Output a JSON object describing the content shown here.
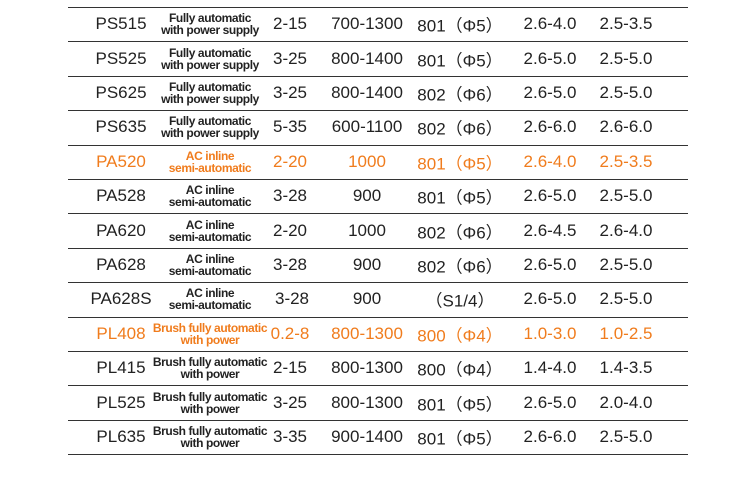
{
  "table": {
    "rows": [
      {
        "model": "PS515",
        "desc": [
          "Fully automatic",
          "with power supply"
        ],
        "range": "2-15",
        "speed": "700-1300",
        "spec": "801（Φ5）",
        "a": "2.6-4.0",
        "b": "2.5-3.5",
        "highlight": false
      },
      {
        "model": "PS525",
        "desc": [
          "Fully automatic",
          "with power supply"
        ],
        "range": "3-25",
        "speed": "800-1400",
        "spec": "801（Φ5）",
        "a": "2.6-5.0",
        "b": "2.5-5.0",
        "highlight": false
      },
      {
        "model": "PS625",
        "desc": [
          "Fully automatic",
          "with power supply"
        ],
        "range": "3-25",
        "speed": "800-1400",
        "spec": "802（Φ6）",
        "a": "2.6-5.0",
        "b": "2.5-5.0",
        "highlight": false
      },
      {
        "model": "PS635",
        "desc": [
          "Fully automatic",
          "with power supply"
        ],
        "range": "5-35",
        "speed": "600-1100",
        "spec": "802（Φ6）",
        "a": "2.6-6.0",
        "b": "2.6-6.0",
        "highlight": false
      },
      {
        "model": "PA520",
        "desc": [
          "AC inline",
          "semi-automatic"
        ],
        "range": "2-20",
        "speed": "1000",
        "spec": "801（Φ5）",
        "a": "2.6-4.0",
        "b": "2.5-3.5",
        "highlight": true
      },
      {
        "model": "PA528",
        "desc": [
          "AC inline",
          "semi-automatic"
        ],
        "range": "3-28",
        "speed": "900",
        "spec": "801（Φ5）",
        "a": "2.6-5.0",
        "b": "2.5-5.0",
        "highlight": false
      },
      {
        "model": "PA620",
        "desc": [
          "AC inline",
          "semi-automatic"
        ],
        "range": "2-20",
        "speed": "1000",
        "spec": "802（Φ6）",
        "a": "2.6-4.5",
        "b": "2.6-4.0",
        "highlight": false
      },
      {
        "model": "PA628",
        "desc": [
          "AC inline",
          "semi-automatic"
        ],
        "range": "3-28",
        "speed": "900",
        "spec": "802（Φ6）",
        "a": "2.6-5.0",
        "b": "2.5-5.0",
        "highlight": false
      },
      {
        "model": "PA628S",
        "desc": [
          "AC inline",
          "semi-automatic"
        ],
        "range": "3-28",
        "speed": "900",
        "spec": "（S1/4）",
        "a": "2.6-5.0",
        "b": "2.5-5.0",
        "highlight": false
      },
      {
        "model": "PL408",
        "desc": [
          "Brush fully automatic",
          "with power"
        ],
        "range": "0.2-8",
        "speed": "800-1300",
        "spec": "800（Φ4）",
        "a": "1.0-3.0",
        "b": "1.0-2.5",
        "highlight": true
      },
      {
        "model": "PL415",
        "desc": [
          "Brush fully automatic",
          "with power"
        ],
        "range": "2-15",
        "speed": "800-1300",
        "spec": "800（Φ4）",
        "a": "1.4-4.0",
        "b": "1.4-3.5",
        "highlight": false
      },
      {
        "model": "PL525",
        "desc": [
          "Brush fully automatic",
          "with power"
        ],
        "range": "3-25",
        "speed": "800-1300",
        "spec": "801（Φ5）",
        "a": "2.6-5.0",
        "b": "2.0-4.0",
        "highlight": false
      },
      {
        "model": "PL635",
        "desc": [
          "Brush fully automatic",
          "with power"
        ],
        "range": "3-35",
        "speed": "900-1400",
        "spec": "801（Φ5）",
        "a": "2.6-6.0",
        "b": "2.5-5.0",
        "highlight": false
      }
    ]
  }
}
